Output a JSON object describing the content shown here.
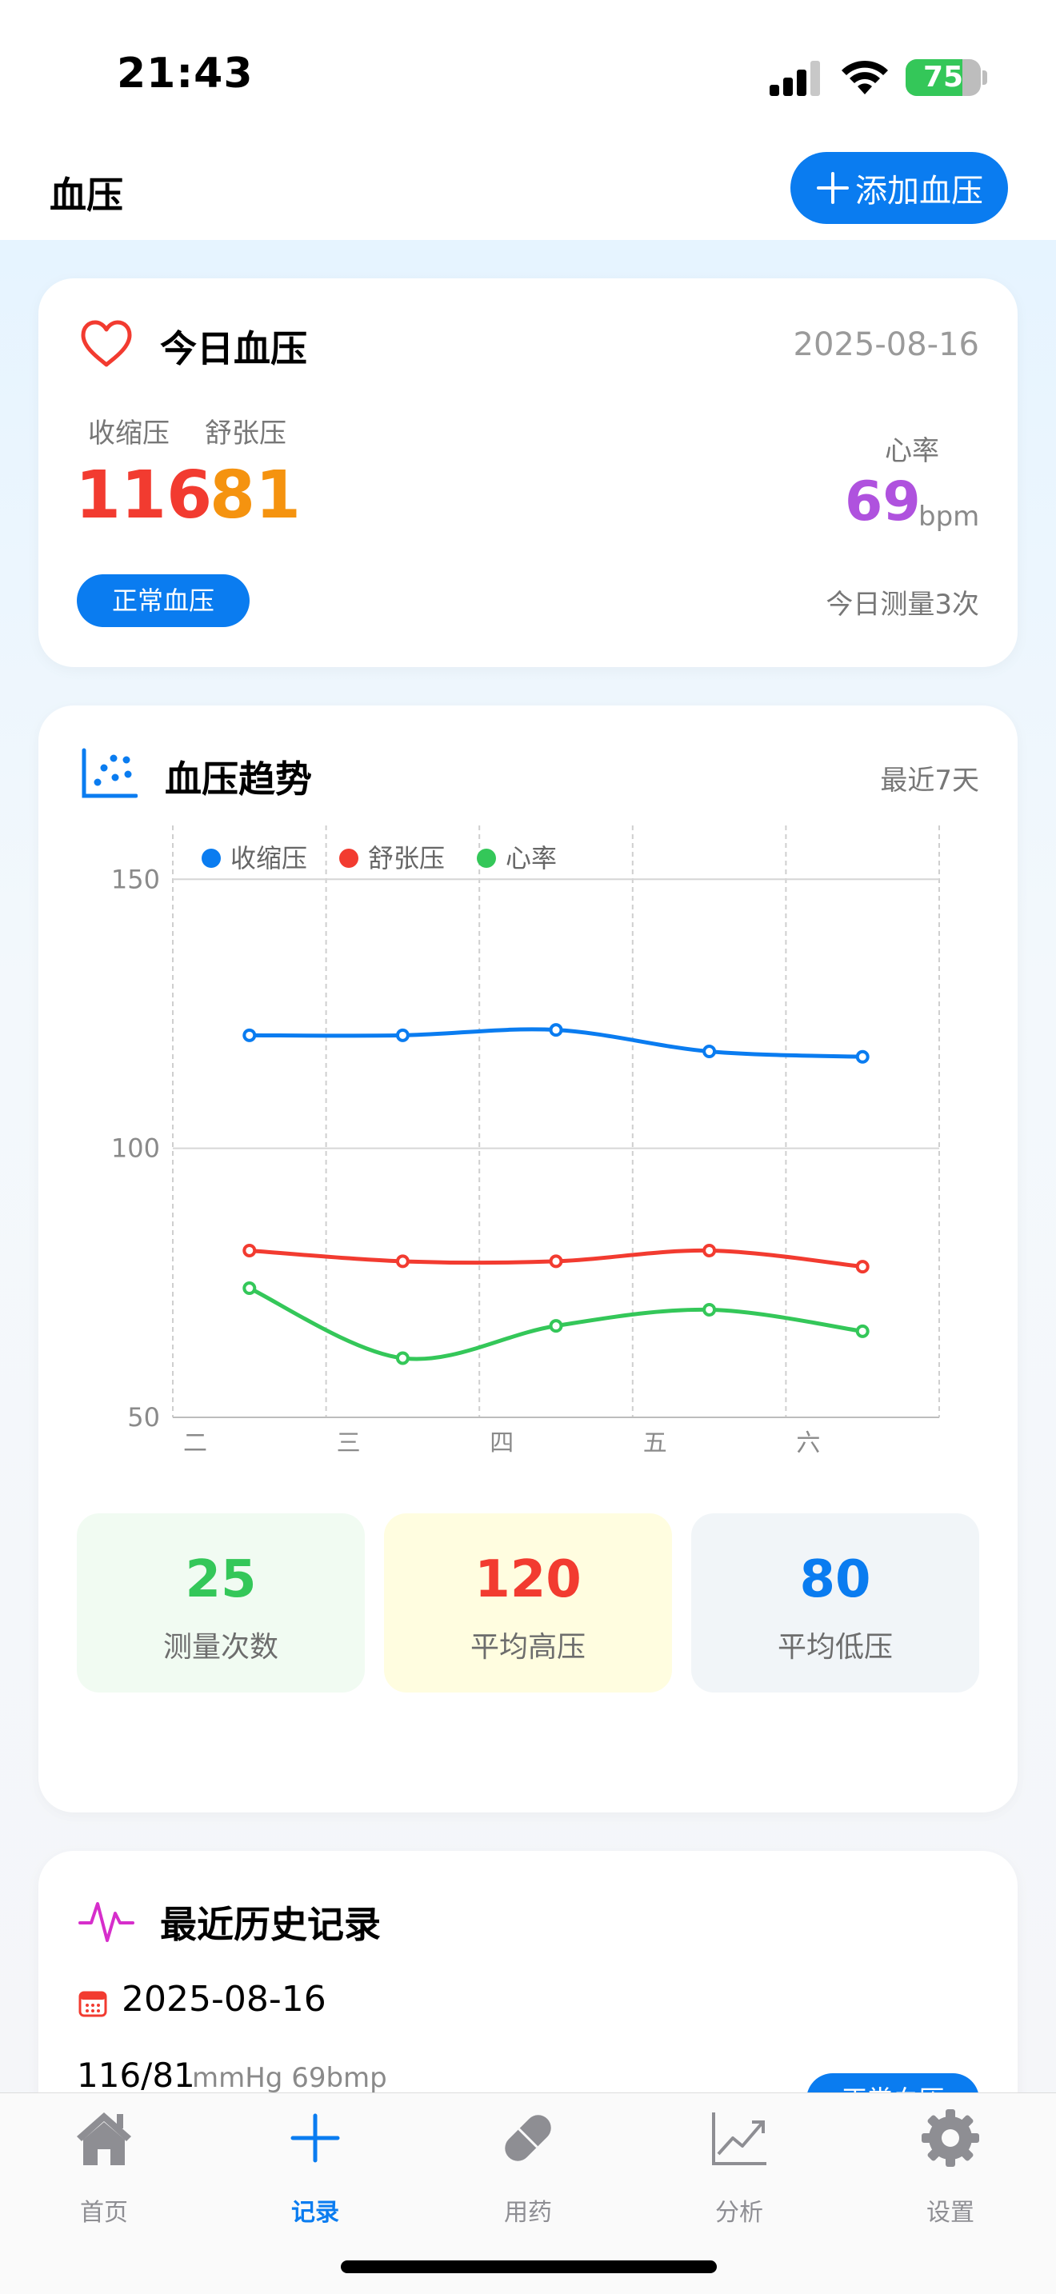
{
  "status_bar": {
    "time": "21:43",
    "battery": "75",
    "battery_level": 0.75
  },
  "header": {
    "title": "血压",
    "add_button": "添加血压"
  },
  "today": {
    "title": "今日血压",
    "date": "2025-08-16",
    "systolic_label": "收缩压",
    "diastolic_label": "舒张压",
    "systolic": "116",
    "diastolic": "81",
    "heart_rate_label": "心率",
    "heart_rate": "69",
    "heart_rate_unit": "bpm",
    "status": "正常血压",
    "count": "今日测量3次"
  },
  "trend": {
    "title": "血压趋势",
    "range": "最近7天",
    "stats": [
      {
        "value": "25",
        "label": "测量次数",
        "color": "#34c759"
      },
      {
        "value": "120",
        "label": "平均高压",
        "color": "#f23b30"
      },
      {
        "value": "80",
        "label": "平均低压",
        "color": "#0a7cf0"
      }
    ]
  },
  "chart_data": {
    "type": "line",
    "categories": [
      "二",
      "三",
      "四",
      "五",
      "六"
    ],
    "ylim": [
      50,
      160
    ],
    "yticks": [
      50,
      100,
      150
    ],
    "grid": true,
    "legend": "top-left",
    "series": [
      {
        "name": "收缩压",
        "color": "#0a7cf0",
        "values": [
          121,
          121,
          122,
          118,
          117
        ]
      },
      {
        "name": "舒张压",
        "color": "#f23b30",
        "values": [
          81,
          79,
          79,
          81,
          78
        ]
      },
      {
        "name": "心率",
        "color": "#34c759",
        "values": [
          74,
          61,
          67,
          70,
          66
        ]
      }
    ]
  },
  "history": {
    "title": "最近历史记录",
    "date": "2025-08-16",
    "reading": "116/81",
    "unit": "mmHg 69bmp",
    "status": "正常血压"
  },
  "tabs": [
    {
      "label": "首页",
      "icon": "home-icon",
      "active": false
    },
    {
      "label": "记录",
      "icon": "plus-icon",
      "active": true
    },
    {
      "label": "用药",
      "icon": "pill-icon",
      "active": false
    },
    {
      "label": "分析",
      "icon": "chart-line-icon",
      "active": false
    },
    {
      "label": "设置",
      "icon": "gear-icon",
      "active": false
    }
  ]
}
